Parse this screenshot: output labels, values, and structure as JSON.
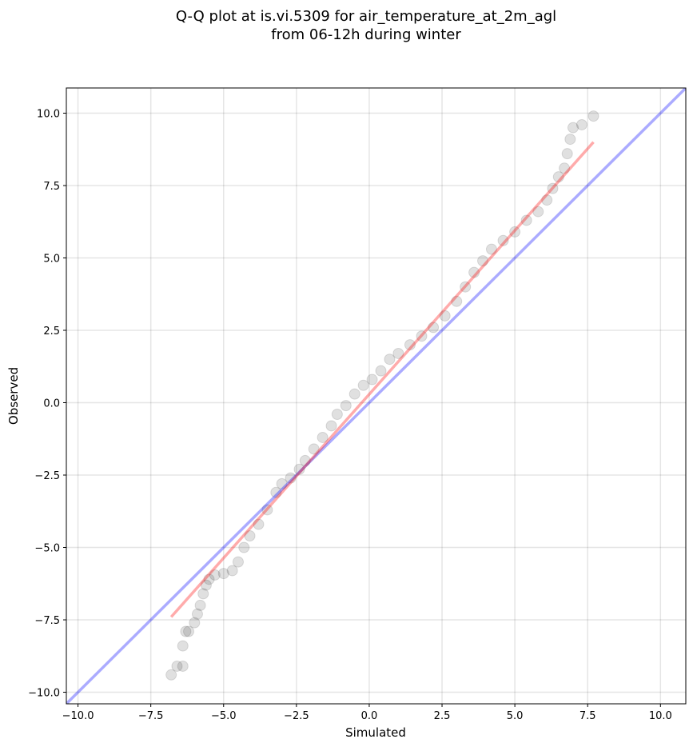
{
  "chart_data": {
    "type": "scatter",
    "title": [
      "Q-Q plot at is.vi.5309 for air_temperature_at_2m_agl",
      "from 06-12h during winter"
    ],
    "x_label": "Simulated",
    "y_label": "Observed",
    "xlim": [
      -10.4,
      10.87
    ],
    "ylim": [
      -10.4,
      10.87
    ],
    "xticks": [
      {
        "value": -10,
        "label": "−10.0"
      },
      {
        "value": -7.5,
        "label": "−7.5"
      },
      {
        "value": -5,
        "label": "−5.0"
      },
      {
        "value": -2.5,
        "label": "−2.5"
      },
      {
        "value": 0,
        "label": "0.0"
      },
      {
        "value": 2.5,
        "label": "2.5"
      },
      {
        "value": 5,
        "label": "5.0"
      },
      {
        "value": 7.5,
        "label": "7.5"
      },
      {
        "value": 10,
        "label": "10.0"
      }
    ],
    "yticks": [
      {
        "value": -10,
        "label": "−10.0"
      },
      {
        "value": -7.5,
        "label": "−7.5"
      },
      {
        "value": -5,
        "label": "−5.0"
      },
      {
        "value": -2.5,
        "label": "−2.5"
      },
      {
        "value": 0,
        "label": "0.0"
      },
      {
        "value": 2.5,
        "label": "2.5"
      },
      {
        "value": 5,
        "label": "5.0"
      },
      {
        "value": 7.5,
        "label": "7.5"
      },
      {
        "value": 10,
        "label": "10.0"
      }
    ],
    "grid": true,
    "series": [
      {
        "color": "#000000",
        "opacity": 0.12,
        "x": [
          -6.8,
          -6.6,
          -6.4,
          -6.4,
          -6.3,
          -6.2,
          -6.0,
          -5.9,
          -5.8,
          -5.7,
          -5.6,
          -5.5,
          -5.3,
          -5.0,
          -4.7,
          -4.5,
          -4.3,
          -4.1,
          -3.8,
          -3.5,
          -3.2,
          -3.0,
          -2.7,
          -2.4,
          -2.2,
          -1.9,
          -1.6,
          -1.3,
          -1.1,
          -0.8,
          -0.5,
          -0.2,
          0.1,
          0.4,
          0.7,
          1.0,
          1.4,
          1.8,
          2.2,
          2.6,
          3.0,
          3.3,
          3.6,
          3.9,
          4.2,
          4.6,
          5.0,
          5.4,
          5.8,
          6.1,
          6.3,
          6.5,
          6.7,
          6.8,
          6.9,
          7.0,
          7.3,
          7.7
        ],
        "values": [
          -9.4,
          -9.1,
          -9.1,
          -8.4,
          -7.9,
          -7.9,
          -7.6,
          -7.3,
          -7.0,
          -6.6,
          -6.3,
          -6.1,
          -5.95,
          -5.9,
          -5.8,
          -5.5,
          -5.0,
          -4.6,
          -4.2,
          -3.7,
          -3.1,
          -2.8,
          -2.6,
          -2.3,
          -2.0,
          -1.6,
          -1.2,
          -0.8,
          -0.4,
          -0.1,
          0.3,
          0.6,
          0.8,
          1.1,
          1.5,
          1.7,
          2.0,
          2.3,
          2.6,
          3.0,
          3.5,
          4.0,
          4.5,
          4.9,
          5.3,
          5.6,
          5.9,
          6.3,
          6.6,
          7.0,
          7.4,
          7.8,
          8.1,
          8.6,
          9.1,
          9.5,
          9.6,
          9.9
        ]
      }
    ],
    "reference_lines": [
      {
        "color": "#0000ff",
        "opacity": 0.33,
        "x": [
          -10.4,
          10.87
        ],
        "values": [
          -10.4,
          10.87
        ]
      },
      {
        "color": "#ff0000",
        "opacity": 0.33,
        "x": [
          -6.8,
          7.7
        ],
        "values": [
          -7.4,
          9.0
        ]
      }
    ]
  }
}
